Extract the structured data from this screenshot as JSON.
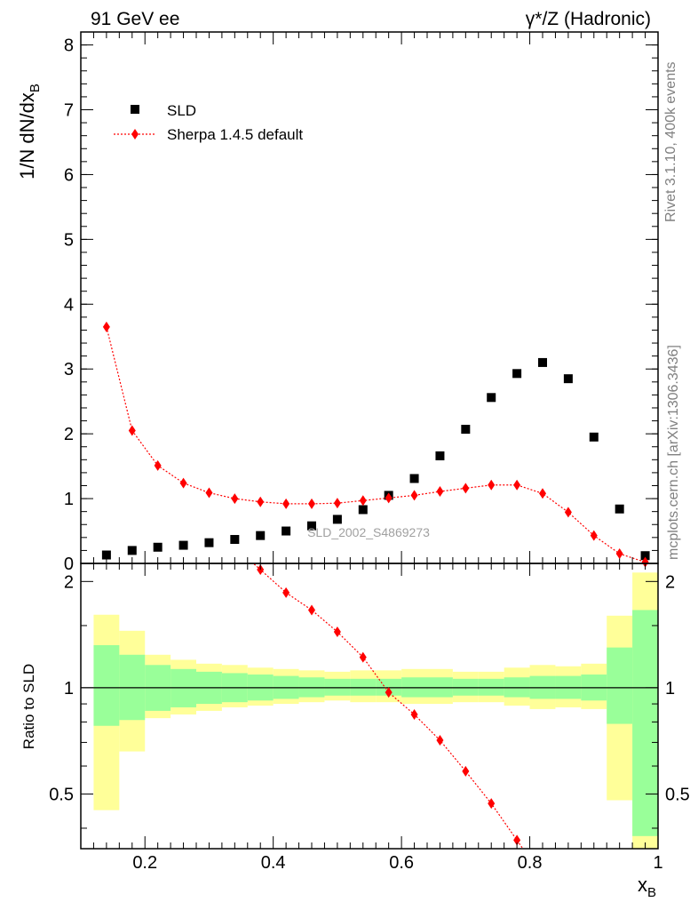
{
  "header": {
    "left": "91 GeV ee",
    "right": "γ*/Z (Hadronic)"
  },
  "side": {
    "rivet": "Rivet 3.1.10,  400k events",
    "mcplots": "mcplots.cern.ch [arXiv:1306.3436]"
  },
  "colors": {
    "data": "#000000",
    "mc": "#ff0000",
    "band_inner": "#99ff99",
    "band_outer": "#ffff99"
  },
  "chart_data": [
    {
      "type": "scatter",
      "panel": "main",
      "ylabel_main": "1/N dN/dx",
      "ylabel_sub": "B",
      "ylim": [
        0,
        8.2
      ],
      "yticks": [
        0,
        1,
        2,
        3,
        4,
        5,
        6,
        7,
        8
      ],
      "analysis_label": "SLD_2002_S4869273",
      "legend_position": "top-left",
      "x": [
        0.14,
        0.18,
        0.22,
        0.26,
        0.3,
        0.34,
        0.38,
        0.42,
        0.46,
        0.5,
        0.54,
        0.58,
        0.62,
        0.66,
        0.7,
        0.74,
        0.78,
        0.82,
        0.86,
        0.9,
        0.94,
        0.98
      ],
      "series": [
        {
          "name": "SLD",
          "marker": "square",
          "values": [
            0.13,
            0.2,
            0.25,
            0.28,
            0.32,
            0.37,
            0.43,
            0.5,
            0.58,
            0.68,
            0.83,
            1.05,
            1.31,
            1.66,
            2.07,
            2.56,
            2.93,
            3.1,
            2.85,
            1.95,
            0.84,
            0.12
          ]
        },
        {
          "name": "Sherpa 1.4.5 default",
          "marker": "diamond",
          "line": "dotted",
          "values": [
            3.65,
            2.05,
            1.51,
            1.24,
            1.09,
            1.0,
            0.95,
            0.92,
            0.92,
            0.93,
            0.97,
            1.01,
            1.05,
            1.11,
            1.16,
            1.21,
            1.21,
            1.08,
            0.79,
            0.43,
            0.15,
            0.02
          ]
        }
      ]
    },
    {
      "type": "line",
      "panel": "ratio",
      "ylabel": "Ratio to SLD",
      "xlabel_main": "x",
      "xlabel_sub": "B",
      "xlim": [
        0.1,
        1.0
      ],
      "ylim": [
        0.35,
        2.25
      ],
      "yticks": [
        0.5,
        1,
        2
      ],
      "xticks": [
        0.2,
        0.4,
        0.6,
        0.8,
        1
      ],
      "bin_edges": [
        0.12,
        0.16,
        0.2,
        0.24,
        0.28,
        0.32,
        0.36,
        0.4,
        0.44,
        0.48,
        0.52,
        0.56,
        0.6,
        0.64,
        0.68,
        0.72,
        0.76,
        0.8,
        0.84,
        0.88,
        0.92,
        0.96,
        1.0
      ],
      "band_inner": {
        "low": [
          0.78,
          0.81,
          0.86,
          0.88,
          0.9,
          0.91,
          0.92,
          0.93,
          0.94,
          0.95,
          0.95,
          0.95,
          0.94,
          0.94,
          0.95,
          0.95,
          0.94,
          0.93,
          0.93,
          0.92,
          0.79,
          0.38
        ],
        "high": [
          1.32,
          1.24,
          1.16,
          1.13,
          1.11,
          1.1,
          1.09,
          1.08,
          1.07,
          1.06,
          1.06,
          1.06,
          1.07,
          1.07,
          1.06,
          1.06,
          1.07,
          1.08,
          1.08,
          1.09,
          1.3,
          1.66
        ]
      },
      "band_outer": {
        "low": [
          0.45,
          0.66,
          0.82,
          0.84,
          0.86,
          0.88,
          0.89,
          0.9,
          0.91,
          0.92,
          0.91,
          0.91,
          0.9,
          0.9,
          0.91,
          0.91,
          0.89,
          0.87,
          0.88,
          0.87,
          0.48,
          0.35
        ],
        "high": [
          1.61,
          1.45,
          1.24,
          1.2,
          1.17,
          1.16,
          1.14,
          1.13,
          1.12,
          1.11,
          1.12,
          1.12,
          1.13,
          1.13,
          1.11,
          1.11,
          1.14,
          1.16,
          1.15,
          1.17,
          1.6,
          2.12
        ]
      },
      "series": [
        {
          "name": "Sherpa 1.4.5 default",
          "x": [
            0.38,
            0.42,
            0.46,
            0.5,
            0.54,
            0.58,
            0.62,
            0.66,
            0.7,
            0.74,
            0.78
          ],
          "values": [
            2.16,
            1.86,
            1.66,
            1.44,
            1.22,
            0.97,
            0.84,
            0.71,
            0.58,
            0.47,
            0.37
          ]
        }
      ]
    }
  ]
}
